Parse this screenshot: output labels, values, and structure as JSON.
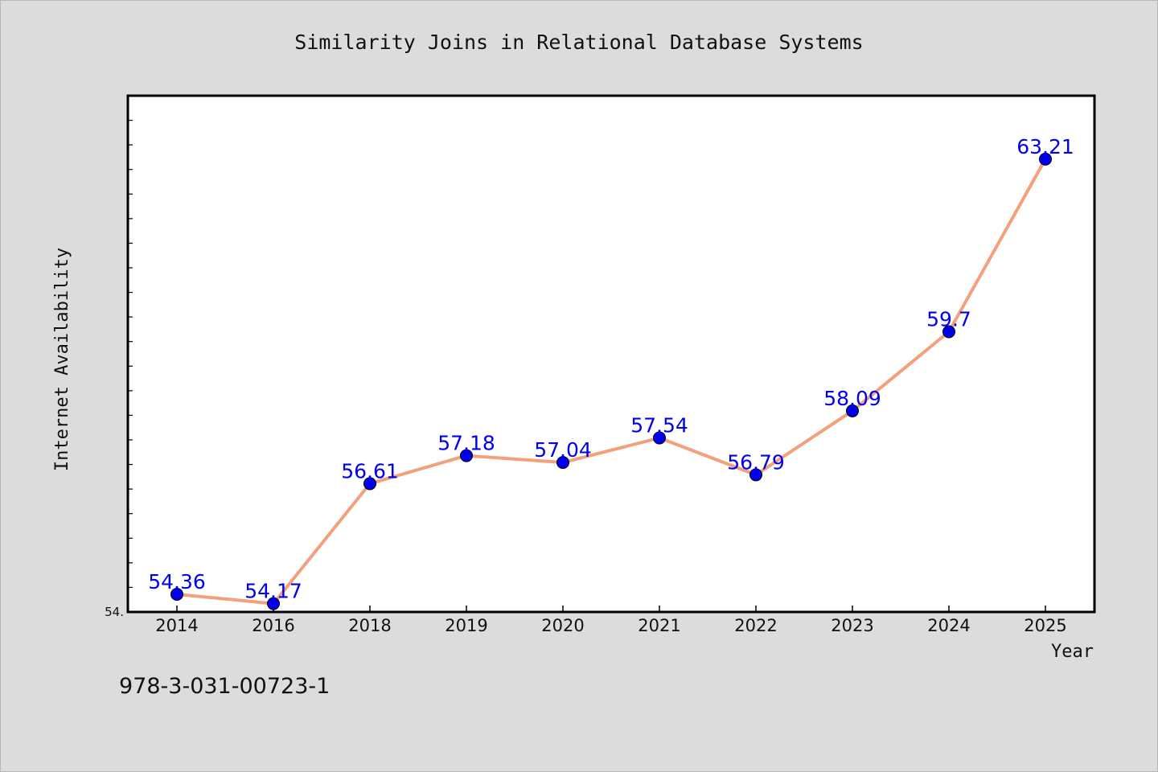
{
  "chart_data": {
    "type": "line",
    "title": "Similarity Joins in Relational Database Systems",
    "xlabel": "Year",
    "ylabel": "Internet Availability",
    "categories": [
      "2014",
      "2016",
      "2018",
      "2019",
      "2020",
      "2021",
      "2022",
      "2023",
      "2024",
      "2025"
    ],
    "series": [
      {
        "values": [
          54.36,
          54.17,
          56.61,
          57.18,
          57.04,
          57.54,
          56.79,
          58.09,
          59.7,
          63.21
        ],
        "labels": [
          "54.36",
          "54.17",
          "56.61",
          "57.18",
          "57.04",
          "57.54",
          "56.79",
          "58.09",
          "59.7",
          "63.21"
        ]
      }
    ],
    "ylim": [
      54.0,
      64.5
    ],
    "y_tick_label": "54.",
    "grid": false,
    "legend": "none",
    "colors": {
      "line": "#f4a07c",
      "marker": "#0000ee",
      "labels": "#0000ee",
      "plot_background": "#ffffff",
      "figure_background": "#dcdcdc"
    }
  },
  "footer_text": "978-3-031-00723-1"
}
